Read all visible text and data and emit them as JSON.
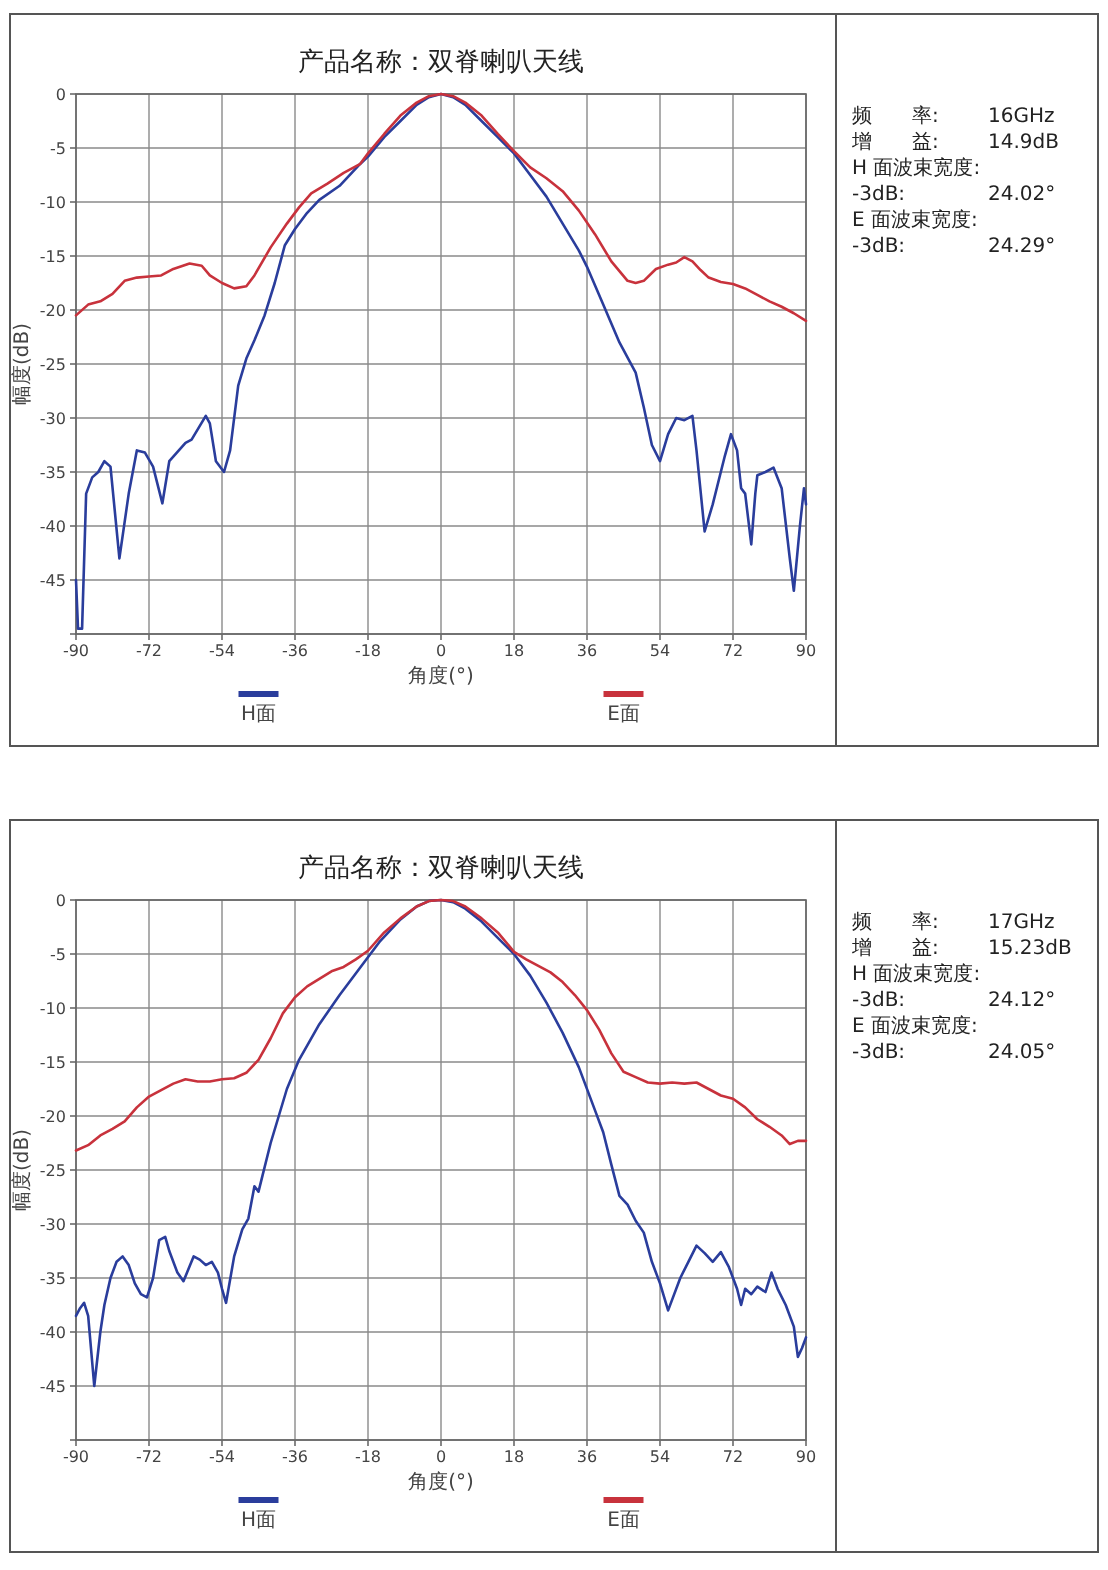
{
  "chart_data": [
    {
      "type": "line",
      "title": "产品名称：双脊喇叭天线",
      "xlabel": "角度(°)",
      "ylabel": "幅度(dB)",
      "xlim": [
        -90,
        90
      ],
      "xticks": [
        -90,
        -72,
        -54,
        -36,
        -18,
        0,
        18,
        36,
        54,
        72,
        90
      ],
      "ylim": [
        -50,
        0
      ],
      "yticks": [
        0,
        -5,
        -10,
        -15,
        -20,
        -25,
        -30,
        -35,
        -40,
        -45,
        {
          "value": -50,
          "label": null
        }
      ],
      "grid": true,
      "legend": "bottom",
      "series": [
        {
          "name": "H面",
          "color": "#2a3d9c",
          "x": [
            -90,
            -89.5,
            -88.5,
            -87.5,
            -86,
            -84.5,
            -83,
            -81.5,
            -79.3,
            -77,
            -75,
            -73,
            -71,
            -68.7,
            -67,
            -63,
            -61.5,
            -58,
            -57,
            -55.5,
            -53.5,
            -52,
            -50,
            -48,
            -46,
            -43.5,
            -41,
            -38.5,
            -36,
            -33,
            -30,
            -25,
            -20,
            -18,
            -14,
            -10,
            -6,
            -3,
            0,
            3,
            6,
            10,
            14,
            18,
            22,
            26,
            30,
            34,
            36,
            40,
            44,
            48,
            50,
            52,
            54,
            56,
            58,
            60,
            62,
            63,
            65,
            67,
            70,
            71.5,
            73,
            74,
            75,
            76.5,
            77.5,
            78,
            80,
            82,
            84,
            86,
            87,
            88.5,
            89.5,
            90
          ],
          "values": [
            -45,
            -49.5,
            -49.5,
            -37,
            -35.5,
            -35,
            -34,
            -34.5,
            -43,
            -37,
            -33,
            -33.2,
            -34.5,
            -37.9,
            -34,
            -32.3,
            -32,
            -29.8,
            -30.5,
            -34,
            -35,
            -33,
            -27,
            -24.5,
            -22.8,
            -20.5,
            -17.5,
            -14,
            -12.5,
            -11,
            -9.8,
            -8.5,
            -6.5,
            -5.8,
            -4,
            -2.5,
            -1,
            -0.3,
            0,
            -0.3,
            -1,
            -2.5,
            -4,
            -5.5,
            -7.5,
            -9.5,
            -12,
            -14.5,
            -16,
            -19.5,
            -23,
            -25.8,
            -29,
            -32.5,
            -34,
            -31.5,
            -30,
            -30.2,
            -29.8,
            -33,
            -40.5,
            -38,
            -33.5,
            -31.5,
            -33,
            -36.5,
            -37,
            -41.7,
            -37,
            -35.3,
            -35,
            -34.6,
            -36.5,
            -43,
            -46,
            -40,
            -36.5,
            -38
          ]
        },
        {
          "name": "E面",
          "color": "#c8323c",
          "x": [
            -90,
            -87,
            -84,
            -81,
            -78,
            -75,
            -72,
            -69,
            -66,
            -62,
            -59,
            -57,
            -54,
            -51,
            -48,
            -46,
            -42,
            -38,
            -35,
            -32,
            -28,
            -24,
            -20,
            -18,
            -14,
            -10,
            -6,
            -3,
            0,
            3,
            6,
            10,
            14,
            18,
            22,
            26,
            30,
            34,
            38,
            42,
            46,
            48,
            50,
            53,
            56,
            58,
            60,
            62,
            64,
            66,
            69,
            72,
            75,
            78,
            81,
            84,
            87,
            90
          ],
          "values": [
            -20.5,
            -19.5,
            -19.2,
            -18.5,
            -17.3,
            -17,
            -16.9,
            -16.8,
            -16.2,
            -15.7,
            -15.9,
            -16.8,
            -17.5,
            -18,
            -17.8,
            -16.8,
            -14.2,
            -12,
            -10.5,
            -9.2,
            -8.3,
            -7.3,
            -6.5,
            -5.5,
            -3.7,
            -2,
            -0.8,
            -0.2,
            0,
            -0.2,
            -0.8,
            -2,
            -3.7,
            -5.3,
            -6.8,
            -7.8,
            -9,
            -10.8,
            -13,
            -15.5,
            -17.3,
            -17.5,
            -17.3,
            -16.2,
            -15.8,
            -15.6,
            -15.1,
            -15.5,
            -16.3,
            -17,
            -17.4,
            -17.6,
            -18,
            -18.6,
            -19.2,
            -19.7,
            -20.3,
            -21
          ]
        }
      ]
    },
    {
      "type": "other",
      "annotations": [
        "频　　率:",
        "16GHz",
        "增　　益:",
        "14.9dB",
        "H 面波束宽度:",
        "-3dB:",
        "24.02°",
        "E 面波束宽度:",
        "-3dB:",
        "24.29°"
      ]
    },
    {
      "type": "line",
      "title": "产品名称：双脊喇叭天线",
      "xlabel": "角度(°)",
      "ylabel": "幅度(dB)",
      "xlim": [
        -90,
        90
      ],
      "xticks": [
        -90,
        -72,
        -54,
        -36,
        -18,
        0,
        18,
        36,
        54,
        72,
        90
      ],
      "ylim": [
        -50,
        0
      ],
      "yticks": [
        0,
        -5,
        -10,
        -15,
        -20,
        -25,
        -30,
        -35,
        -40,
        -45,
        {
          "value": -50,
          "label": null
        }
      ],
      "grid": true,
      "legend": "bottom",
      "series": [
        {
          "name": "H面",
          "color": "#2a3d9c",
          "x": [
            -90,
            -89,
            -88,
            -87,
            -85.5,
            -84,
            -83,
            -81.5,
            -80,
            -78.5,
            -77,
            -75.5,
            -74,
            -72.5,
            -71,
            -69.5,
            -68,
            -67,
            -65,
            -63.5,
            -61,
            -59.5,
            -58,
            -56.5,
            -55,
            -54,
            -53,
            -51,
            -49,
            -47.5,
            -46,
            -45,
            -44,
            -42,
            -40,
            -38,
            -35,
            -30,
            -25,
            -20,
            -15,
            -10,
            -6,
            -3,
            0,
            3,
            6,
            10,
            14,
            18,
            22,
            26,
            30,
            34,
            38,
            40,
            42,
            44,
            46,
            48,
            50,
            52,
            54,
            56,
            57,
            59,
            61,
            63,
            65,
            67,
            69,
            71,
            73,
            74,
            75,
            76.5,
            78,
            80,
            81.5,
            83,
            85,
            87,
            88,
            89,
            90
          ],
          "values": [
            -38.5,
            -37.8,
            -37.3,
            -38.5,
            -45,
            -40,
            -37.5,
            -35,
            -33.5,
            -33,
            -33.8,
            -35.5,
            -36.5,
            -36.8,
            -35,
            -31.5,
            -31.2,
            -32.5,
            -34.5,
            -35.3,
            -33,
            -33.3,
            -33.8,
            -33.5,
            -34.5,
            -36,
            -37.3,
            -33,
            -30.5,
            -29.5,
            -26.5,
            -27,
            -25.5,
            -22.5,
            -20,
            -17.5,
            -14.8,
            -11.5,
            -8.8,
            -6.3,
            -3.8,
            -1.8,
            -0.6,
            -0.1,
            0,
            -0.2,
            -0.8,
            -2,
            -3.5,
            -5,
            -7,
            -9.5,
            -12.3,
            -15.5,
            -19.5,
            -21.5,
            -24.5,
            -27.4,
            -28.2,
            -29.7,
            -30.8,
            -33.5,
            -35.5,
            -38,
            -37,
            -35,
            -33.5,
            -32,
            -32.7,
            -33.5,
            -32.6,
            -34,
            -36,
            -37.5,
            -36,
            -36.5,
            -35.8,
            -36.3,
            -34.5,
            -36,
            -37.5,
            -39.5,
            -42.3,
            -41.5,
            -40.5
          ]
        },
        {
          "name": "E面",
          "color": "#c8323c",
          "x": [
            -90,
            -87,
            -84,
            -81,
            -78,
            -75,
            -72,
            -69,
            -66,
            -63,
            -60,
            -57,
            -54,
            -51,
            -48,
            -45,
            -42,
            -39,
            -36,
            -33,
            -30,
            -27,
            -24,
            -21,
            -18,
            -14,
            -10,
            -6,
            -3,
            0,
            3,
            6,
            10,
            14,
            18,
            21,
            24,
            27,
            30,
            33,
            36,
            39,
            42,
            45,
            48,
            51,
            54,
            57,
            60,
            63,
            66,
            69,
            72,
            75,
            78,
            81,
            84,
            86,
            88,
            90
          ],
          "values": [
            -23.2,
            -22.7,
            -21.8,
            -21.2,
            -20.5,
            -19.2,
            -18.2,
            -17.6,
            -17,
            -16.6,
            -16.8,
            -16.8,
            -16.6,
            -16.5,
            -16,
            -14.8,
            -12.8,
            -10.5,
            -9,
            -8,
            -7.3,
            -6.6,
            -6.2,
            -5.5,
            -4.7,
            -3,
            -1.7,
            -0.6,
            -0.1,
            0,
            -0.1,
            -0.6,
            -1.7,
            -3,
            -4.8,
            -5.5,
            -6.1,
            -6.7,
            -7.6,
            -8.8,
            -10.2,
            -12,
            -14.2,
            -15.9,
            -16.4,
            -16.9,
            -17,
            -16.9,
            -17,
            -16.9,
            -17.5,
            -18.1,
            -18.4,
            -19.2,
            -20.3,
            -21,
            -21.8,
            -22.6,
            -22.3,
            -22.3
          ]
        }
      ]
    },
    {
      "type": "other",
      "annotations": [
        "频　　率:",
        "17GHz",
        "增　　益:",
        "15.23dB",
        "H 面波束宽度:",
        "-3dB:",
        "24.12°",
        "E 面波束宽度:",
        "-3dB:",
        "24.05°"
      ]
    }
  ]
}
